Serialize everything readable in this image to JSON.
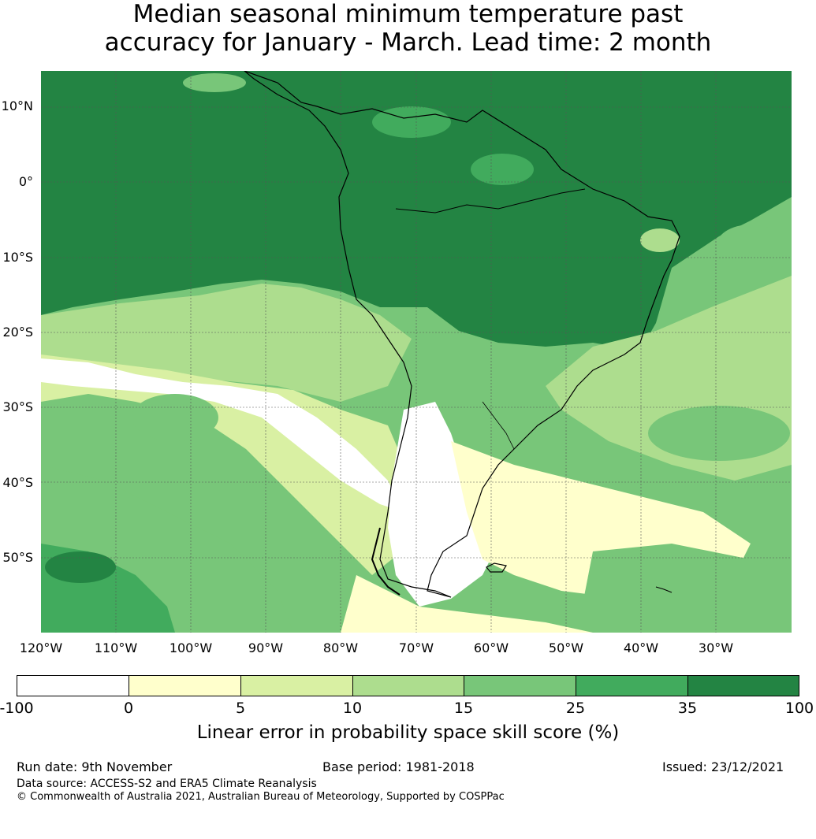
{
  "title_line1": "Median seasonal minimum temperature past",
  "title_line2": "accuracy for January - March. Lead time: 2 month",
  "lat_labels": [
    "10°N",
    "0°",
    "10°S",
    "20°S",
    "30°S",
    "40°S",
    "50°S"
  ],
  "lon_labels": [
    "120°W",
    "110°W",
    "100°W",
    "90°W",
    "80°W",
    "70°W",
    "60°W",
    "50°W",
    "40°W",
    "30°W"
  ],
  "colorbar": {
    "ticks": [
      "-100",
      "0",
      "5",
      "10",
      "15",
      "25",
      "35",
      "100"
    ],
    "colors": [
      "#ffffff",
      "#ffffcc",
      "#d9f0a3",
      "#addd8e",
      "#78c679",
      "#41ab5d",
      "#238443"
    ],
    "label": "Linear error in probability space skill score (%)"
  },
  "footer": {
    "run_date": "Run date: 9th November",
    "base_period": "Base period: 1981-2018",
    "issued": "Issued: 23/12/2021",
    "data_source": "Data source: ACCESS-S2 and ERA5 Climate Reanalysis",
    "copyright": "© Commonwealth of Australia 2021, Australian Bureau of Meteorology, Supported by COSPPac"
  }
}
